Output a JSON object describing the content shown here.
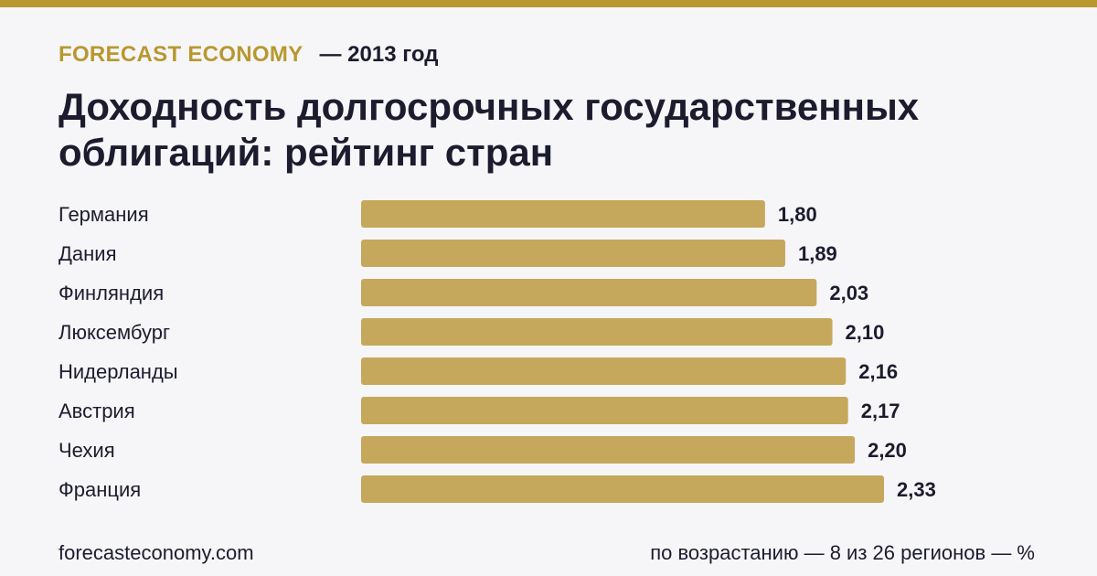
{
  "header": {
    "brand": "FORECAST ECONOMY",
    "year": "— 2013 год",
    "title": "Доходность долгосрочных государственных облигаций: рейтинг стран"
  },
  "footer": {
    "site": "forecasteconomy.com",
    "note": "по возрастанию — 8 из 26 регионов — %"
  },
  "colors": {
    "accent": "#b8982f",
    "bar": "#c6a85c",
    "background": "#f6f6f9",
    "text": "#1c1c2e"
  },
  "chart_data": {
    "type": "bar",
    "orientation": "horizontal",
    "categories": [
      "Германия",
      "Дания",
      "Финляндия",
      "Люксембург",
      "Нидерланды",
      "Австрия",
      "Чехия",
      "Франция"
    ],
    "values": [
      1.8,
      1.89,
      2.03,
      2.1,
      2.16,
      2.17,
      2.2,
      2.33
    ],
    "value_labels": [
      "1,80",
      "1,89",
      "2,03",
      "2,10",
      "2,16",
      "2,17",
      "2,20",
      "2,33"
    ],
    "xlim": [
      0,
      2.33
    ],
    "grid": false,
    "legend": "none"
  }
}
